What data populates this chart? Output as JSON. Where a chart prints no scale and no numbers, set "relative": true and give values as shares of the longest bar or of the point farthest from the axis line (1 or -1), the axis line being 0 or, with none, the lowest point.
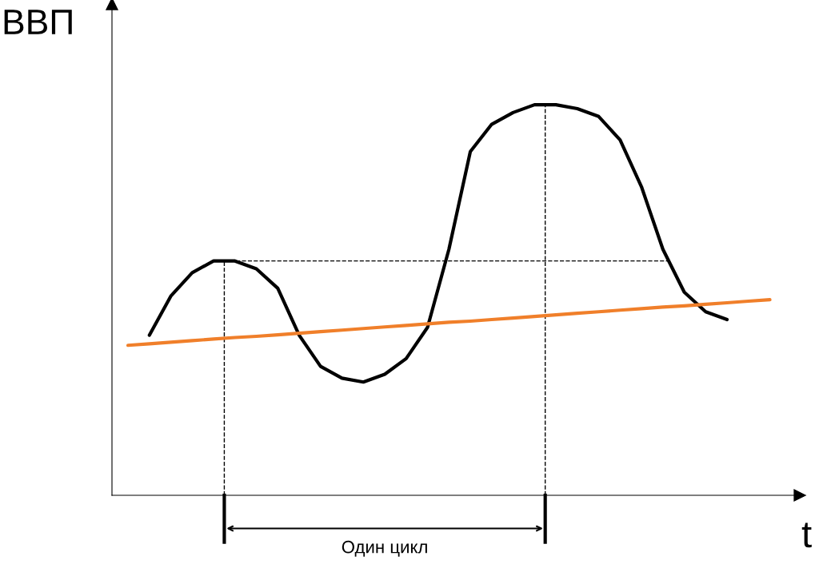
{
  "chart_data": {
    "type": "line",
    "relative": true,
    "xlabel": "t",
    "ylabel": "ВВП",
    "categories": [
      null,
      null,
      null,
      null,
      null,
      null,
      null,
      null,
      null,
      null,
      null,
      null,
      null,
      null,
      null,
      null,
      null,
      null,
      null,
      null,
      null,
      null,
      null,
      null,
      null,
      null,
      null,
      null,
      null,
      null,
      null
    ],
    "series": [
      {
        "color": "#000000",
        "values": [
          null,
          0.41,
          0.51,
          0.57,
          0.6,
          0.6,
          0.58,
          0.53,
          0.41,
          0.33,
          0.3,
          0.29,
          0.31,
          0.35,
          0.43,
          0.63,
          0.88,
          0.95,
          0.98,
          1.0,
          1.0,
          0.99,
          0.97,
          0.91,
          0.79,
          0.63,
          0.52,
          0.47,
          0.45,
          null,
          null
        ]
      },
      {
        "color": "#f07f2a",
        "values": [
          0.384,
          0.388,
          0.392,
          0.396,
          0.4,
          0.404,
          0.407,
          0.411,
          0.415,
          0.419,
          0.423,
          0.427,
          0.431,
          0.435,
          0.439,
          0.443,
          0.446,
          0.45,
          0.454,
          0.458,
          0.462,
          0.466,
          0.47,
          0.474,
          0.478,
          0.482,
          0.485,
          0.489,
          0.493,
          0.497,
          0.501
        ]
      }
    ],
    "ref_lines": [
      {
        "axis": "y",
        "value": 0.6,
        "line_style": "dashed",
        "color": "#000000"
      }
    ],
    "annotations": [
      "Один цикл"
    ],
    "legend": false,
    "grid": false,
    "marker": "none",
    "line_style": "solid"
  }
}
